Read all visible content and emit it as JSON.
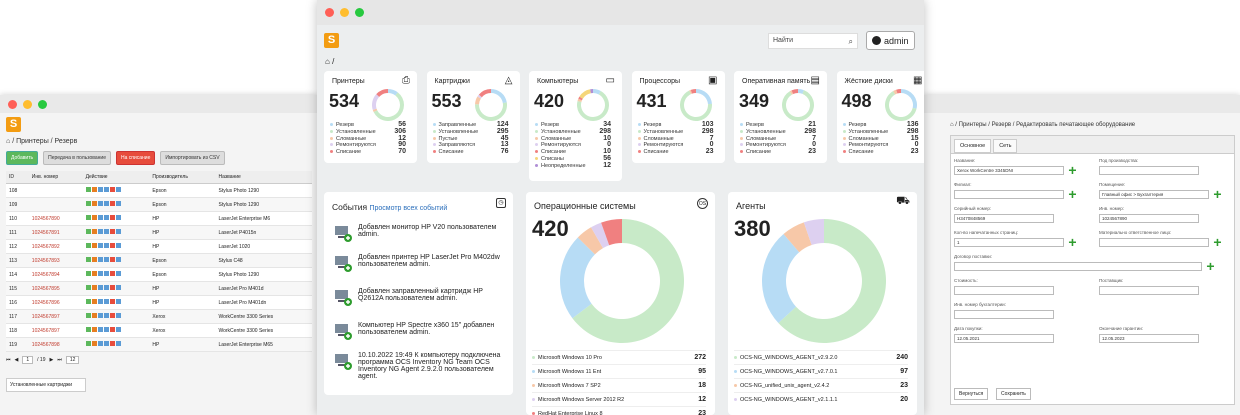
{
  "left_window": {
    "breadcrumb": "/ Принтеры / Резерв",
    "buttons": [
      "Добавить",
      "Передача в пользование",
      "На списание",
      "Импортировать из CSV"
    ],
    "columns": [
      "ID",
      "Инв. номер",
      "Действие",
      "Производитель",
      "Название"
    ],
    "rows": [
      {
        "id": "108",
        "inv": "",
        "maker": "Epson",
        "name": "Stylus Photo 1290"
      },
      {
        "id": "109",
        "inv": "",
        "maker": "Epson",
        "name": "Stylus Photo 1290"
      },
      {
        "id": "110",
        "inv": "1024567890",
        "maker": "HP",
        "name": "LaserJet Enterprise M6"
      },
      {
        "id": "111",
        "inv": "1024567891",
        "maker": "HP",
        "name": "LaserJet P4015n"
      },
      {
        "id": "112",
        "inv": "1024567892",
        "maker": "HP",
        "name": "LaserJet 1020"
      },
      {
        "id": "113",
        "inv": "1024567893",
        "maker": "Epson",
        "name": "Stylus C48"
      },
      {
        "id": "114",
        "inv": "1024567894",
        "maker": "Epson",
        "name": "Stylus Photo 1290"
      },
      {
        "id": "115",
        "inv": "1024567895",
        "maker": "HP",
        "name": "LaserJet Pro M401d"
      },
      {
        "id": "116",
        "inv": "1024567896",
        "maker": "HP",
        "name": "LaserJet Pro M401dn"
      },
      {
        "id": "117",
        "inv": "1024567897",
        "maker": "Xerox",
        "name": "WorkCentre 3300 Series"
      },
      {
        "id": "118",
        "inv": "1024567897",
        "maker": "Xerox",
        "name": "WorkCentre 3300 Series"
      },
      {
        "id": "119",
        "inv": "1024567898",
        "maker": "HP",
        "name": "LaserJet Enterprise M65"
      }
    ],
    "pager_page": "1",
    "pager_total": "/ 19",
    "pager_size": "12",
    "bottom_tab": "Установленные картриджи"
  },
  "right_window": {
    "breadcrumb": "/ Принтеры / Резерв / Редактировать печатающее оборудование",
    "tabs": [
      "Основное",
      "Сеть"
    ],
    "fields": {
      "name_label": "Название:",
      "name_value": "Xerox WorkCentre 3345DNI",
      "maker_label": "Под производства:",
      "maker_value": "",
      "branch_label": "Филиал:",
      "branch_value": "",
      "place_label": "Помещение:",
      "place_value": "Главный офис > Бухгалтерия",
      "serial_label": "Серийный номер:",
      "serial_value": "H3470848569",
      "inv_label": "Инв. номер:",
      "inv_value": "1024567890",
      "count_label": "Кол-во напечатанных страниц:",
      "count_value": "1",
      "resp_label": "Материально ответственное лицо:",
      "resp_value": "",
      "contract_label": "Договор поставки:",
      "contract_value": "",
      "cost_label": "Стоимость:",
      "cost_value": "",
      "supplier_label": "Поставщик:",
      "supplier_value": "",
      "acc_label": "Инв. номер бухгалтерии:",
      "acc_value": "",
      "date_label": "Дата покупки:",
      "date_value": "12.05.2021",
      "warranty_label": "Окончание гарантии:",
      "warranty_value": "12.05.2023",
      "cancel": "Вернуться",
      "save": "Сохранить"
    }
  },
  "center": {
    "search_placeholder": "Найти",
    "user": "admin",
    "breadcrumb": "/",
    "stats": [
      {
        "title": "Принтеры",
        "total": "534",
        "icon": "printer-icon",
        "legend": [
          [
            "Резерв",
            "56"
          ],
          [
            "Установленные",
            "306"
          ],
          [
            "Сломанные",
            "12"
          ],
          [
            "Ремонтируются",
            "90"
          ],
          [
            "Списание",
            "70"
          ]
        ]
      },
      {
        "title": "Картриджи",
        "total": "553",
        "icon": "cartridge-icon",
        "legend": [
          [
            "Заправленные",
            "124"
          ],
          [
            "Установленные",
            "295"
          ],
          [
            "Пустые",
            "45"
          ],
          [
            "Заправляются",
            "13"
          ],
          [
            "Списание",
            "76"
          ]
        ]
      },
      {
        "title": "Компьютеры",
        "total": "420",
        "icon": "monitor-icon",
        "legend": [
          [
            "Резерв",
            "34"
          ],
          [
            "Установленные",
            "298"
          ],
          [
            "Сломанные",
            "10"
          ],
          [
            "Ремонтируются",
            "0"
          ],
          [
            "Списание",
            "10"
          ],
          [
            "Списаны",
            "56"
          ],
          [
            "Неопределенные",
            "12"
          ]
        ]
      },
      {
        "title": "Процессоры",
        "total": "431",
        "icon": "cpu-icon",
        "legend": [
          [
            "Резерв",
            "103"
          ],
          [
            "Установленные",
            "298"
          ],
          [
            "Сломанные",
            "7"
          ],
          [
            "Ремонтируются",
            "0"
          ],
          [
            "Списание",
            "23"
          ]
        ]
      },
      {
        "title": "Оперативная память",
        "total": "349",
        "icon": "ram-icon",
        "legend": [
          [
            "Резерв",
            "21"
          ],
          [
            "Установленные",
            "298"
          ],
          [
            "Сломанные",
            "7"
          ],
          [
            "Ремонтируются",
            "0"
          ],
          [
            "Списание",
            "23"
          ]
        ]
      },
      {
        "title": "Жёсткие диски",
        "total": "498",
        "icon": "hdd-icon",
        "legend": [
          [
            "Резерв",
            "136"
          ],
          [
            "Установленные",
            "298"
          ],
          [
            "Сломанные",
            "15"
          ],
          [
            "Ремонтируются",
            "0"
          ],
          [
            "Списание",
            "23"
          ]
        ]
      }
    ],
    "legend_colors": [
      "#b7dcf5",
      "#c8eac8",
      "#f7c8a8",
      "#ddd0f0",
      "#f08080",
      "#f5d67a",
      "#b08fd6"
    ],
    "events": {
      "title": "События",
      "link": "Просмотр всех событий",
      "items": [
        "Добавлен монитор HP V20 пользователем admin.",
        "Добавлен принтер HP LaserJet Pro M402dw пользователем admin.",
        "Добавлен заправленный картридж HP Q2612A пользователем admin.",
        "Компьютер HP Spectre x360 15\" добавлен пользователем admin.",
        "10.10.2022 19:49 К компьютеру подключена программа OCS Inventory NG Team OCS Inventory NG Agent 2.9.2.0 пользователем agent."
      ]
    },
    "os": {
      "title": "Операционные системы",
      "total": "420",
      "items": [
        [
          "Microsoft Windows 10 Pro",
          "272"
        ],
        [
          "Microsoft Windows 11 Ent",
          "95"
        ],
        [
          "Microsoft Windows 7 SP2",
          "18"
        ],
        [
          "Microsoft Windows Server 2012 R2",
          "12"
        ],
        [
          "RedHat Enterprise Linux 8",
          "23"
        ]
      ],
      "colors": [
        "#c8eac8",
        "#b7dcf5",
        "#f7c8a8",
        "#ddd0f0",
        "#f08080"
      ]
    },
    "agents": {
      "title": "Агенты",
      "total": "380",
      "items": [
        [
          "OCS-NG_WINDOWS_AGENT_v2.9.2.0",
          "240"
        ],
        [
          "OCS-NG_WINDOWS_AGENT_v2.7.0.1",
          "97"
        ],
        [
          "OCS-NG_unified_unix_agent_v2.4.2",
          "23"
        ],
        [
          "OCS-NG_WINDOWS_AGENT_v2.1.1.1",
          "20"
        ]
      ],
      "colors": [
        "#c8eac8",
        "#b7dcf5",
        "#f7c8a8",
        "#ddd0f0"
      ]
    }
  }
}
